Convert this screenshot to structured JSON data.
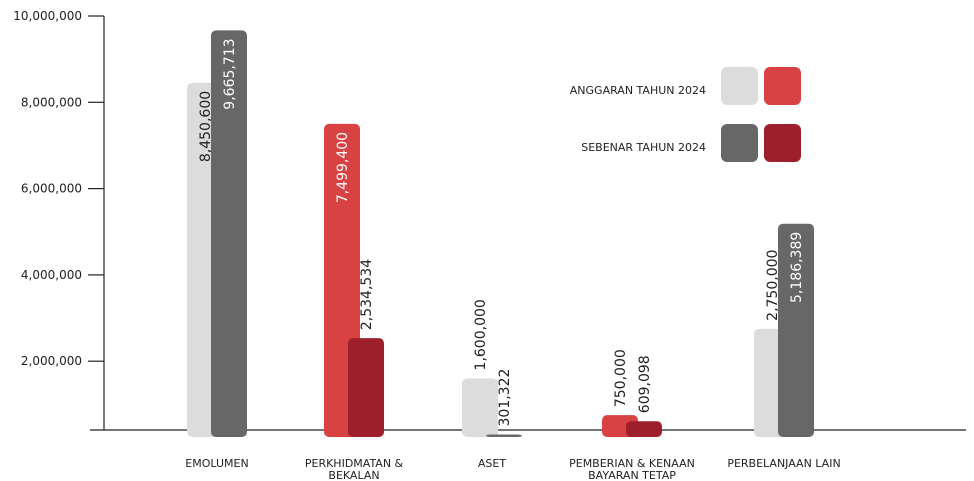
{
  "chart_data": {
    "type": "bar",
    "categories": [
      "EMOLUMEN",
      "PERKHIDMATAN & BEKALAN",
      "ASET",
      "PEMBERIAN & KENAAN BAYARAN TETAP",
      "PERBELANJAAN LAIN"
    ],
    "series": [
      {
        "name": "ANGGARAN TAHUN 2024",
        "color": [
          "#dcdcdc",
          "#d94242"
        ],
        "bar_colors": [
          "#dcdcdc",
          "#d94242",
          "#dcdcdc",
          "#d94242",
          "#dcdcdc"
        ],
        "values": [
          8450600,
          7499400,
          1600000,
          750000,
          2750000
        ],
        "value_labels": [
          "8,450,600",
          "7,499,400",
          "1,600,000",
          "750,000",
          "2,750,000"
        ]
      },
      {
        "name": "SEBENAR TAHUN 2024",
        "color": [
          "#676767",
          "#9e1f2c"
        ],
        "bar_colors": [
          "#676767",
          "#9e1f2c",
          "#676767",
          "#9e1f2c",
          "#676767"
        ],
        "values": [
          9665713,
          2534534,
          301322,
          609098,
          5186389
        ],
        "value_labels": [
          "9,665,713",
          "2,534,534",
          "301,322",
          "609,098",
          "5,186,389"
        ]
      }
    ],
    "ylim": [
      0,
      10000000
    ],
    "yticks": [
      {
        "value": 2000000,
        "label": "2,000,000"
      },
      {
        "value": 4000000,
        "label": "4,000,000"
      },
      {
        "value": 6000000,
        "label": "6,000,000"
      },
      {
        "value": 8000000,
        "label": "8,000,000"
      },
      {
        "value": 10000000,
        "label": "10,000,000"
      }
    ],
    "legend": "upper right"
  }
}
